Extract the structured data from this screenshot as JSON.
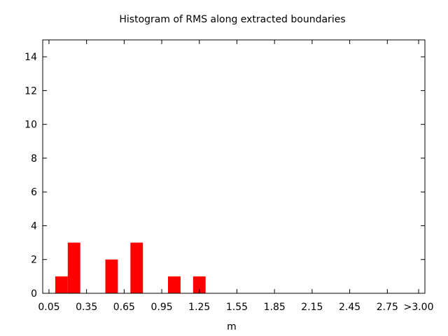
{
  "chart_data": {
    "type": "bar",
    "title": "Histogram of RMS along extracted boundaries",
    "xlabel": "m",
    "ylabel": "",
    "ylim": [
      0,
      15
    ],
    "yticks": [
      0,
      2,
      4,
      6,
      8,
      10,
      12,
      14
    ],
    "xlim": [
      0.0,
      3.05
    ],
    "xticks": [
      {
        "value": 0.05,
        "label": "0.05"
      },
      {
        "value": 0.35,
        "label": "0.35"
      },
      {
        "value": 0.65,
        "label": "0.65"
      },
      {
        "value": 0.95,
        "label": "0.95"
      },
      {
        "value": 1.25,
        "label": "1.25"
      },
      {
        "value": 1.55,
        "label": "1.55"
      },
      {
        "value": 1.85,
        "label": "1.85"
      },
      {
        "value": 2.15,
        "label": "2.15"
      },
      {
        "value": 2.45,
        "label": "2.45"
      },
      {
        "value": 2.75,
        "label": "2.75"
      },
      {
        "value": 3.0,
        "label": ">3.00"
      }
    ],
    "bins": [
      {
        "start": 0.1,
        "end": 0.2,
        "value": 1
      },
      {
        "start": 0.2,
        "end": 0.3,
        "value": 3
      },
      {
        "start": 0.5,
        "end": 0.6,
        "value": 2
      },
      {
        "start": 0.7,
        "end": 0.8,
        "value": 3
      },
      {
        "start": 1.0,
        "end": 1.1,
        "value": 1
      },
      {
        "start": 1.2,
        "end": 1.3,
        "value": 1
      }
    ],
    "bar_color": "#ff0000",
    "grid": false,
    "legend": "none"
  }
}
